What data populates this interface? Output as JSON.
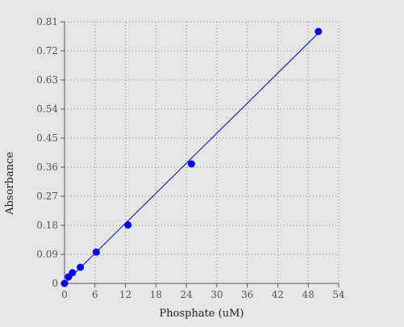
{
  "chart_data": {
    "type": "scatter",
    "title": "",
    "xlabel": "Phosphate (uM)",
    "ylabel": "Absorbance",
    "xlim": [
      0,
      54
    ],
    "ylim": [
      0,
      0.81
    ],
    "xticks": [
      "0",
      "6",
      "12",
      "18",
      "24",
      "30",
      "36",
      "42",
      "48",
      "54"
    ],
    "yticks": [
      "0",
      "0.09",
      "0.18",
      "0.27",
      "0.36",
      "0.45",
      "0.54",
      "0.63",
      "0.72",
      "0.81"
    ],
    "grid": true,
    "legend": "none",
    "series": [
      {
        "points": [
          {
            "x": 0,
            "y": 0.0
          },
          {
            "x": 0.78,
            "y": 0.02
          },
          {
            "x": 1.56,
            "y": 0.033
          },
          {
            "x": 3.125,
            "y": 0.05
          },
          {
            "x": 6.25,
            "y": 0.097
          },
          {
            "x": 12.5,
            "y": 0.181
          },
          {
            "x": 25,
            "y": 0.37
          },
          {
            "x": 50,
            "y": 0.78
          }
        ],
        "color": "#0000ee"
      }
    ],
    "trendline": {
      "x": [
        0,
        50
      ],
      "y": [
        0.0,
        0.775
      ],
      "color": "#0000cc"
    }
  }
}
